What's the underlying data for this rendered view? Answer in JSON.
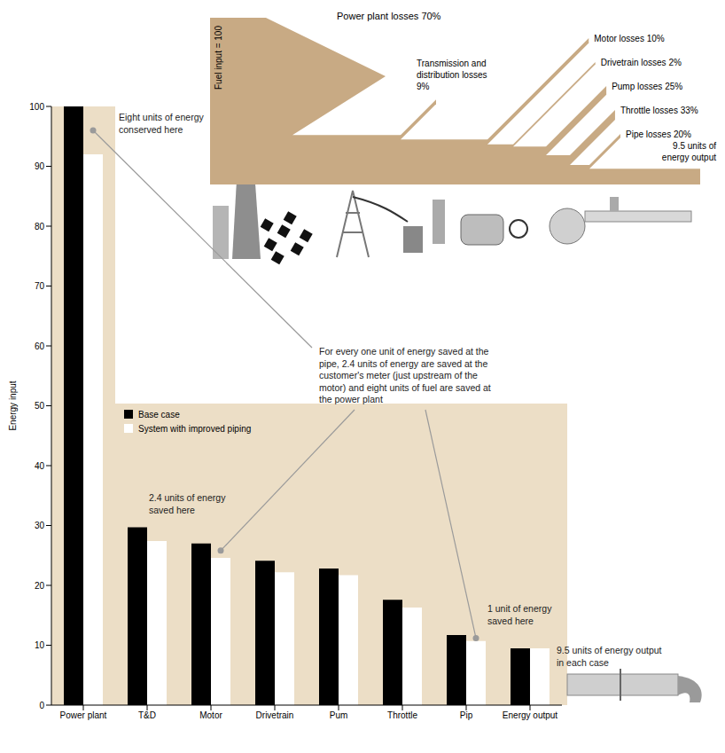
{
  "chart_data": {
    "type": "bar",
    "categories": [
      "Power plant",
      "T&D",
      "Motor",
      "Drivetrain",
      "Pum",
      "Throttle",
      "Pip",
      "Energy output"
    ],
    "series": [
      {
        "name": "Base case",
        "color": "#000000",
        "values": [
          100,
          29.7,
          27,
          24.1,
          22.8,
          17.6,
          11.7,
          9.5
        ]
      },
      {
        "name": "System with improved piping",
        "color": "#ffffff",
        "values": [
          92,
          27.4,
          24.6,
          22.2,
          21.7,
          16.3,
          10.7,
          9.5
        ]
      }
    ],
    "y_label": "Energy input",
    "ylim": [
      0,
      100
    ],
    "yticks": [
      0,
      10,
      20,
      30,
      40,
      50,
      60,
      70,
      80,
      90,
      100
    ],
    "grid": false,
    "legend": "center left",
    "annotations": [
      {
        "text": "Eight units of energy conserved here",
        "category": "Power plant"
      },
      {
        "text": "For every one unit of energy saved at the pipe, 2.4 units of energy are saved at the customer's meter (just upstream of the motor) and eight units of fuel are saved at the power plant"
      },
      {
        "text": "2.4 units of energy saved here",
        "category": "Motor"
      },
      {
        "text": "1 unit of energy saved here",
        "category": "Pip"
      },
      {
        "text": "9.5 units of energy output in each case",
        "category": "Energy output"
      }
    ]
  },
  "diagram": {
    "type": "sankey",
    "input_label": "Fuel input = 100",
    "flows": [
      "Power plant losses 70%",
      "Transmission and distribution losses 9%",
      "Motor losses 10%",
      "Drivetrain losses 2%",
      "Pump losses 25%",
      "Throttle losses 33%",
      "Pipe losses 20%"
    ],
    "output_label": "9.5 units of energy output"
  }
}
